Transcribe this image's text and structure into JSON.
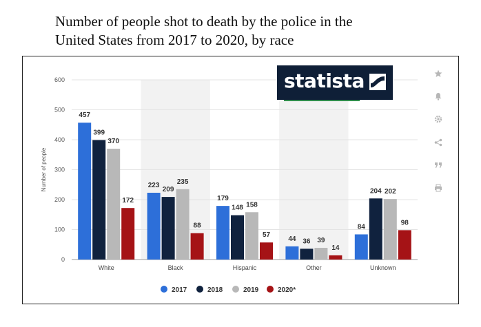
{
  "title": "Number of people shot to death by the police in the\nUnited States from 2017 to 2020, by race",
  "brand": {
    "name": "statista"
  },
  "colors": {
    "2017": "#2d6fd9",
    "2018": "#10223e",
    "2019": "#b8b8b8",
    "2020*": "#a51316",
    "grid": "#e3e3e3",
    "band": "#f2f2f2"
  },
  "tools": [
    {
      "icon": "star-icon"
    },
    {
      "icon": "bell-icon"
    },
    {
      "icon": "gear-icon"
    },
    {
      "icon": "share-icon"
    },
    {
      "icon": "quote-icon"
    },
    {
      "icon": "print-icon"
    }
  ],
  "chart_data": {
    "type": "bar",
    "title": "Number of people shot to death by the police in the United States from 2017 to 2020, by race",
    "xlabel": "",
    "ylabel": "Number of people",
    "ylim": [
      0,
      600
    ],
    "yticks": [
      0,
      100,
      200,
      300,
      400,
      500,
      600
    ],
    "grid": true,
    "legend_position": "bottom",
    "categories": [
      "White",
      "Black",
      "Hispanic",
      "Other",
      "Unknown"
    ],
    "series": [
      {
        "name": "2017",
        "color": "#2d6fd9",
        "values": [
          457,
          223,
          179,
          44,
          84
        ]
      },
      {
        "name": "2018",
        "color": "#10223e",
        "values": [
          399,
          209,
          148,
          36,
          204
        ]
      },
      {
        "name": "2019",
        "color": "#b8b8b8",
        "values": [
          370,
          235,
          158,
          39,
          202
        ]
      },
      {
        "name": "2020*",
        "color": "#a51316",
        "values": [
          172,
          88,
          57,
          14,
          98
        ]
      }
    ]
  }
}
